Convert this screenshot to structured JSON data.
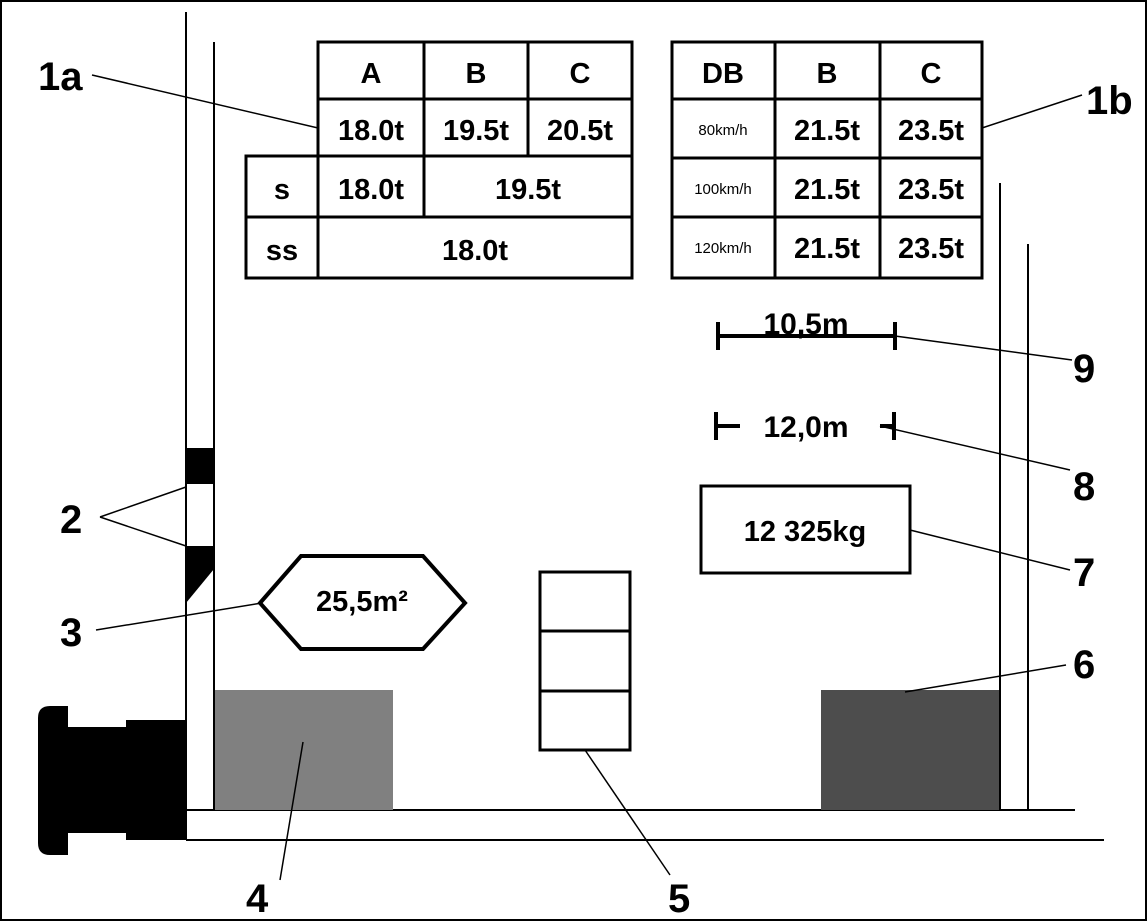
{
  "callouts": {
    "c1a": "1a",
    "c1b": "1b",
    "c2": "2",
    "c3": "3",
    "c4": "4",
    "c5": "5",
    "c6": "6",
    "c7": "7",
    "c8": "8",
    "c9": "9"
  },
  "table_a": {
    "headers": [
      "A",
      "B",
      "C"
    ],
    "row1": [
      "18.0t",
      "19.5t",
      "20.5t"
    ],
    "s_label": "s",
    "s_values": [
      "18.0t",
      "19.5t"
    ],
    "ss_label": "ss",
    "ss_value": "18.0t"
  },
  "table_b": {
    "headers": [
      "DB",
      "B",
      "C"
    ],
    "rows": [
      {
        "speed": "80km/h",
        "b": "21.5t",
        "c": "23.5t"
      },
      {
        "speed": "100km/h",
        "b": "21.5t",
        "c": "23.5t"
      },
      {
        "speed": "120km/h",
        "b": "21.5t",
        "c": "23.5t"
      }
    ]
  },
  "markings": {
    "length_between": "10,5m",
    "length_over": "12,0m",
    "tare_weight": "12 325kg",
    "floor_area": "25,5m²"
  },
  "colors": {
    "line": "#000000",
    "box_light": "#808080",
    "box_dark": "#4d4d4d"
  }
}
